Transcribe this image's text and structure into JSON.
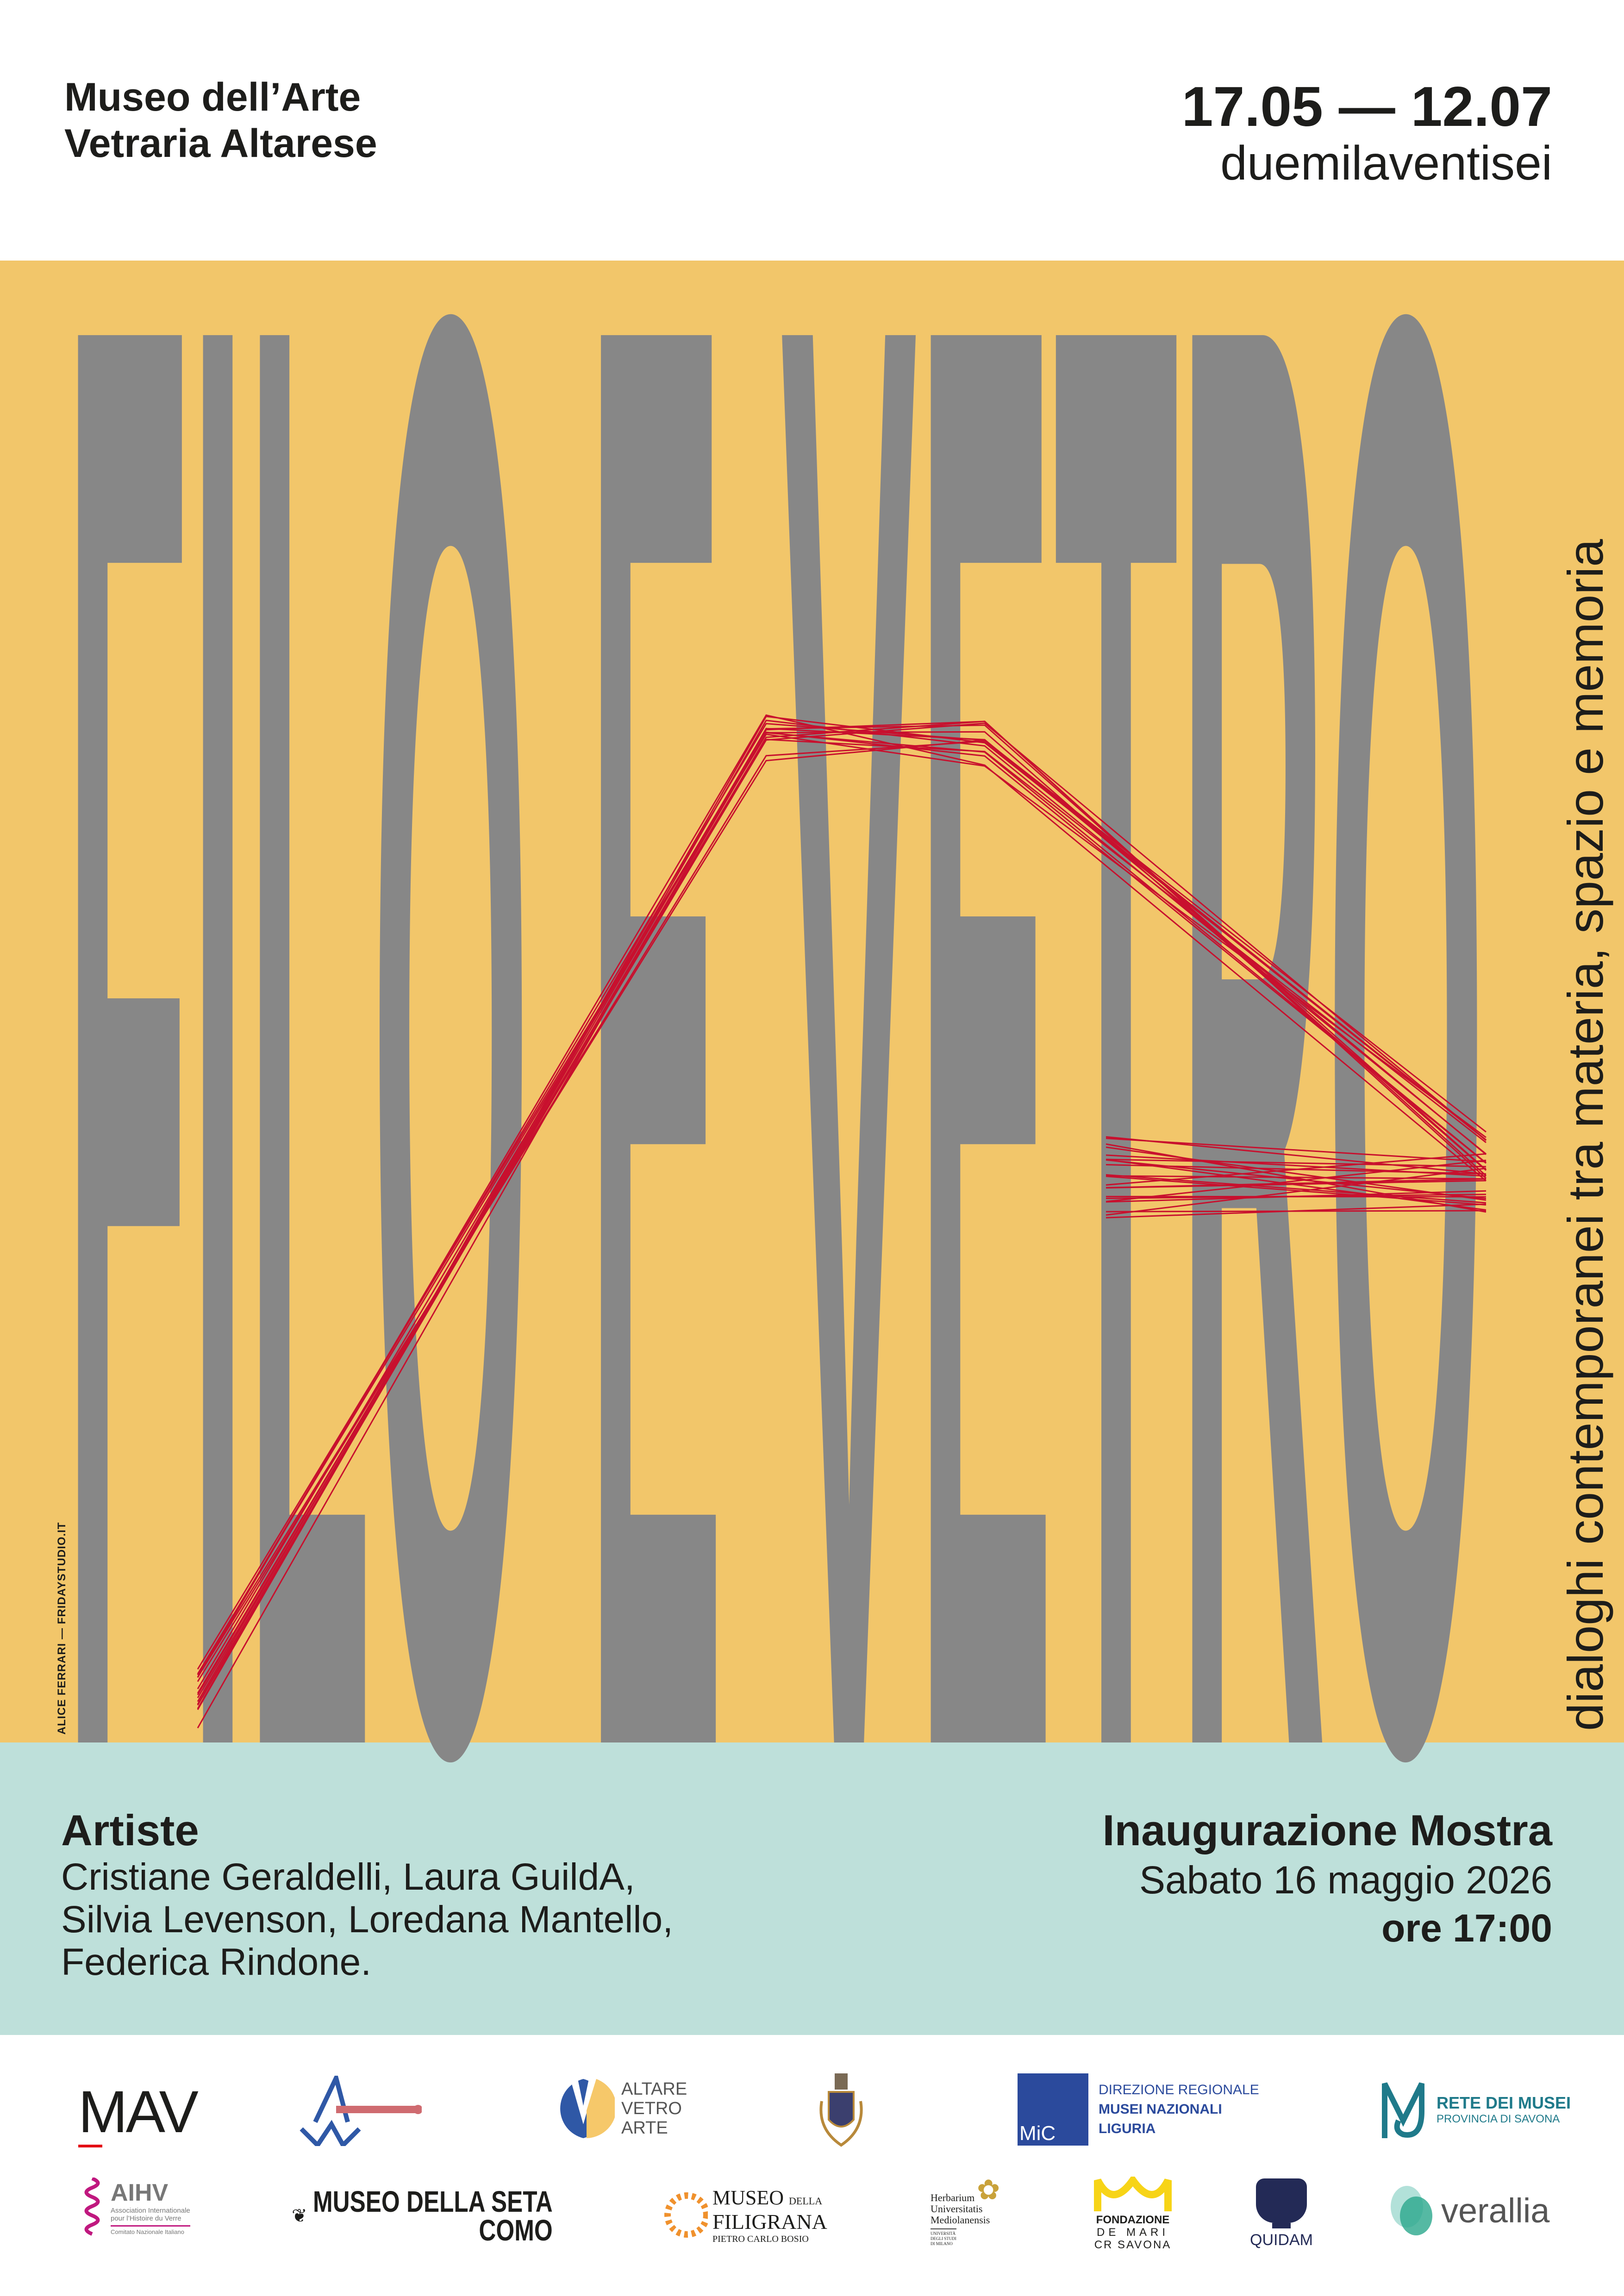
{
  "header": {
    "venue_line1": "Museo dell’Arte",
    "venue_line2": "Vetraria Altarese",
    "dates": "17.05 — 12.07",
    "year": "duemilaventisei"
  },
  "title": {
    "main": "FILO E VETRO",
    "subtitle": "dialoghi contemporanei tra materia, spazio e memoria",
    "credit": "ALICE FERRARI — FRIDAYSTUDIO.IT"
  },
  "artists": {
    "heading": "Artiste",
    "lines": [
      "Cristiane Geraldelli, Laura GuildA,",
      "Silvia Levenson, Loredana Mantello,",
      "Federica Rindone."
    ]
  },
  "inauguration": {
    "heading": "Inaugurazione Mostra",
    "date": "Sabato 16 maggio 2026",
    "time": "ore 17:00"
  },
  "logos": {
    "mav": "MAV",
    "altare": [
      "ALTARE",
      "VETRO",
      "ARTE"
    ],
    "mic": {
      "mark": "MiC",
      "lines": [
        "DIREZIONE REGIONALE",
        "MUSEI NAZIONALI",
        "LIGURIA"
      ]
    },
    "rete": [
      "RETE DEI MUSEI",
      "PROVINCIA DI SAVONA"
    ],
    "aihv": {
      "mark": "AIHV",
      "lines": [
        "Association Internationale",
        "pour l’Histoire du Verre",
        "Comitato Nazionale Italiano"
      ]
    },
    "seta": [
      "MUSEO DELLA SETA",
      "COMO"
    ],
    "filigrana": [
      "MUSEO",
      "DELLA",
      "FILIGRANA",
      "PIETRO CARLO BOSIO"
    ],
    "herbarium": [
      "Herbarium",
      "Universitatis",
      "Mediolanensis",
      "UNIVERSITÀ",
      "DEGLI STUDI",
      "DI MILANO"
    ],
    "demari": [
      "FONDAZIONE",
      "DE MARI",
      "CR SAVONA"
    ],
    "quidam": "QUIDAM",
    "verallia": "verallia"
  },
  "colors": {
    "yellow": "#F2C66A",
    "teal": "#BEE0DA",
    "letters": "#878787",
    "thread": "#C8102E",
    "text": "#1d1d1b"
  }
}
